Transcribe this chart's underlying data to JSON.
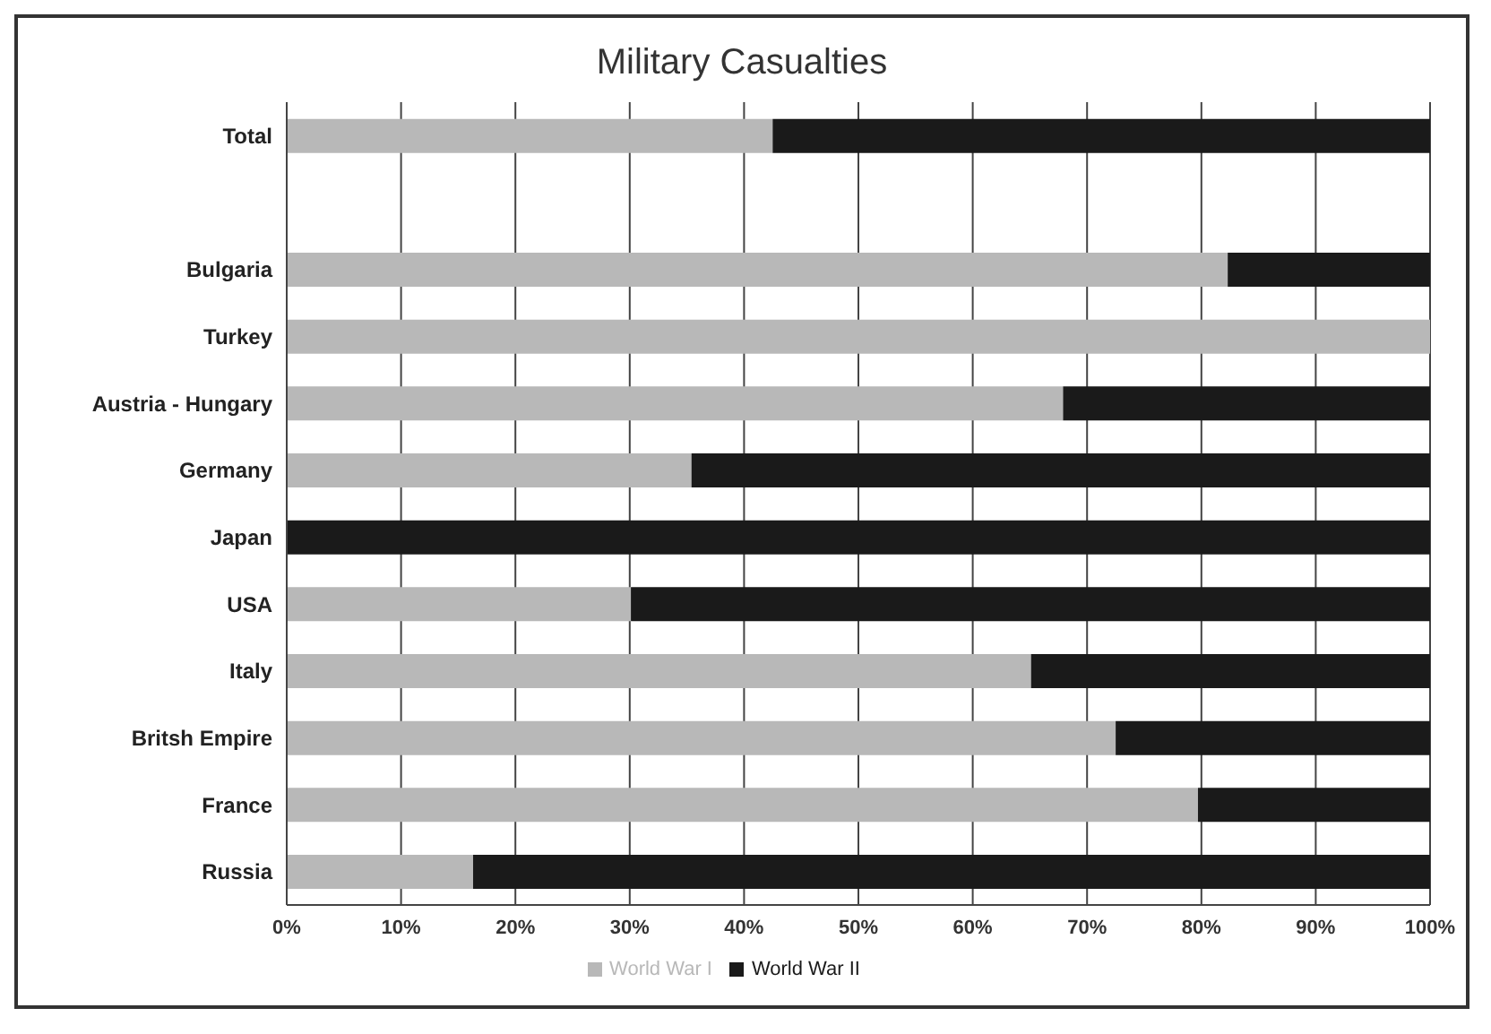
{
  "chart_data": {
    "type": "bar",
    "orientation": "horizontal",
    "stacked": true,
    "title": "Military Casualties",
    "categories": [
      "Total",
      null,
      "Bulgaria",
      "Turkey",
      "Austria - Hungary",
      "Germany",
      "Japan",
      "USA",
      "Italy",
      "Britsh Empire",
      "France",
      "Russia"
    ],
    "series": [
      {
        "name": "World War I",
        "color": "#b8b8b8",
        "values": [
          42.5,
          null,
          82.3,
          100,
          67.9,
          35.4,
          0,
          30.1,
          65.1,
          72.5,
          79.7,
          16.3
        ]
      },
      {
        "name": "World War II",
        "color": "#1a1a1a",
        "values": [
          57.5,
          null,
          17.7,
          0,
          32.1,
          64.6,
          100,
          69.9,
          34.9,
          27.5,
          20.3,
          83.7
        ]
      }
    ],
    "xlim": [
      0,
      100
    ],
    "xticks": [
      {
        "value": 0,
        "label": "0%"
      },
      {
        "value": 10,
        "label": "10%"
      },
      {
        "value": 20,
        "label": "20%"
      },
      {
        "value": 30,
        "label": "30%"
      },
      {
        "value": 40,
        "label": "40%"
      },
      {
        "value": 50,
        "label": "50%"
      },
      {
        "value": 60,
        "label": "60%"
      },
      {
        "value": 70,
        "label": "70%"
      },
      {
        "value": 80,
        "label": "80%"
      },
      {
        "value": 90,
        "label": "90%"
      },
      {
        "value": 100,
        "label": "100%"
      }
    ],
    "grid": "x",
    "legend": "bottom"
  }
}
